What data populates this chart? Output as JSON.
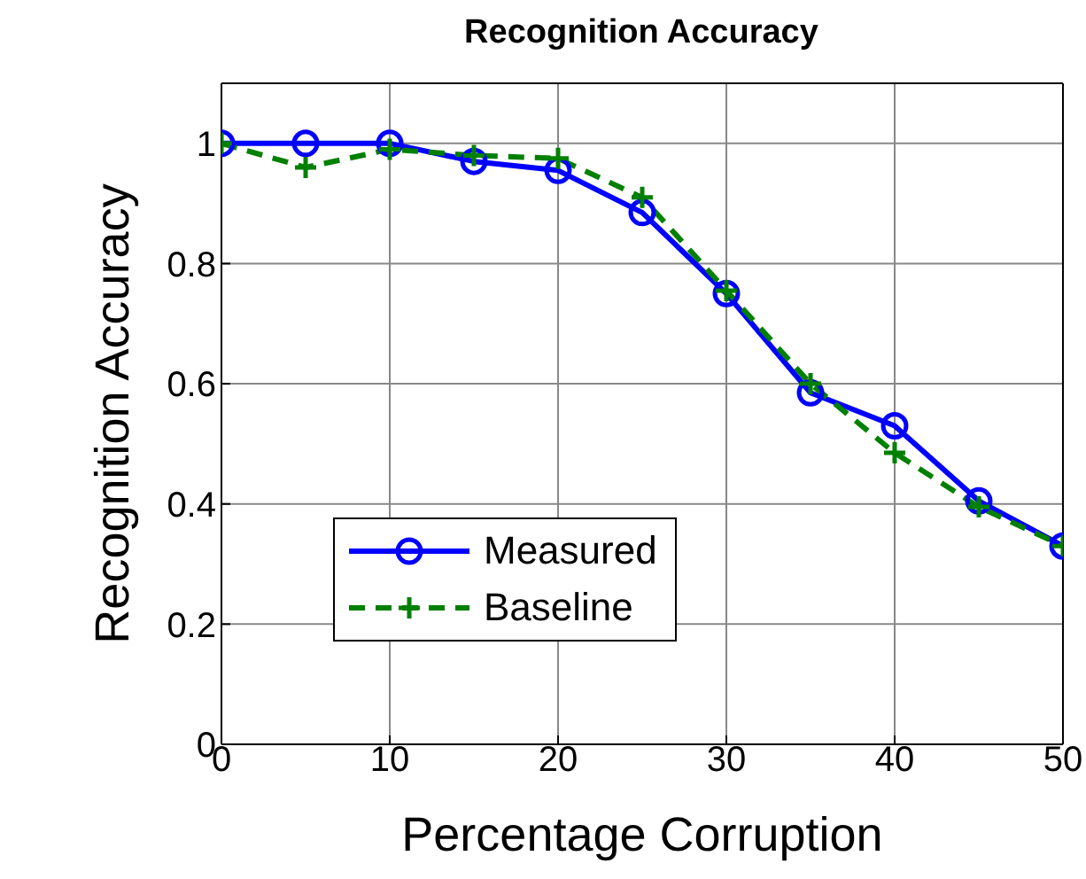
{
  "chart_data": {
    "type": "line",
    "title": "Recognition Accuracy",
    "xlabel": "Percentage Corruption",
    "ylabel": "Recognition Accuracy",
    "x": [
      0,
      5,
      10,
      15,
      20,
      25,
      30,
      35,
      40,
      45,
      50
    ],
    "series": [
      {
        "name": "Measured",
        "color": "#0000ff",
        "marker": "circle",
        "line_style": "solid",
        "values": [
          1,
          1,
          1,
          0.97,
          0.955,
          0.885,
          0.75,
          0.585,
          0.53,
          0.405,
          0.33
        ]
      },
      {
        "name": "Baseline",
        "color": "#008000",
        "marker": "cross",
        "line_style": "dashed",
        "values": [
          1,
          0.96,
          0.99,
          0.98,
          0.975,
          0.91,
          0.755,
          0.6,
          0.485,
          0.395,
          0.33
        ]
      }
    ],
    "xlim": [
      0,
      50
    ],
    "xticks": [
      0,
      10,
      20,
      30,
      40,
      50
    ],
    "ylim": [
      0,
      1.1
    ],
    "yticks": [
      0,
      0.2,
      0.4,
      0.6,
      0.8,
      1
    ],
    "grid": true,
    "legend": "bottom left"
  }
}
